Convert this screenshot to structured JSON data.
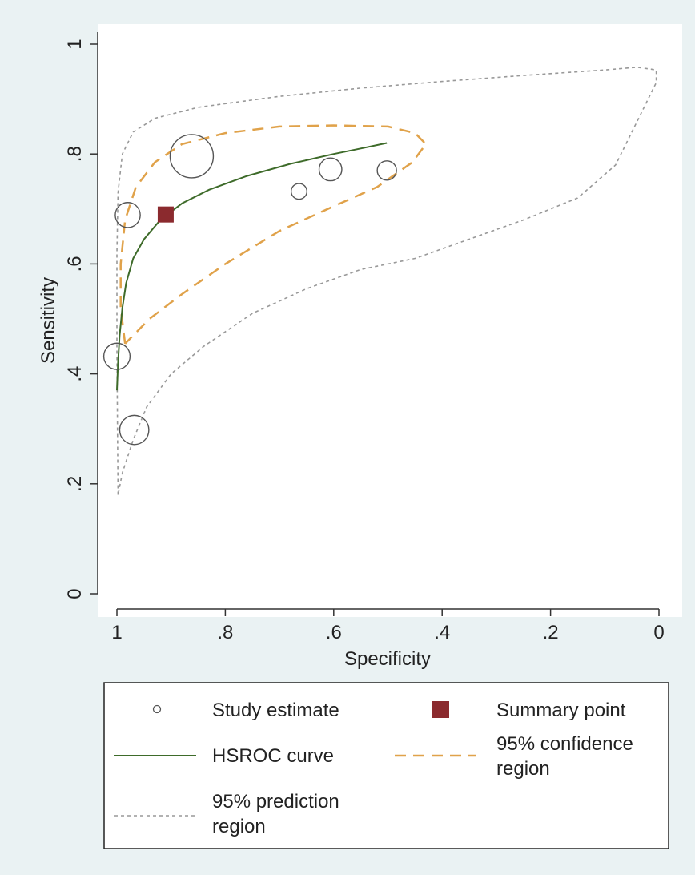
{
  "chart_data": {
    "type": "scatter",
    "xlabel": "Specificity",
    "ylabel": "Sensitivity",
    "x_reversed": true,
    "xlim": [
      1,
      0
    ],
    "ylim": [
      0,
      1
    ],
    "x_ticks": [
      {
        "value": 1,
        "label": "1"
      },
      {
        "value": 0.8,
        "label": ".8"
      },
      {
        "value": 0.6,
        "label": ".6"
      },
      {
        "value": 0.4,
        "label": ".4"
      },
      {
        "value": 0.2,
        "label": ".2"
      },
      {
        "value": 0,
        "label": "0"
      }
    ],
    "y_ticks": [
      {
        "value": 0,
        "label": "0"
      },
      {
        "value": 0.2,
        "label": ".2"
      },
      {
        "value": 0.4,
        "label": ".4"
      },
      {
        "value": 0.6,
        "label": ".6"
      },
      {
        "value": 0.8,
        "label": ".8"
      },
      {
        "value": 1,
        "label": "1"
      }
    ],
    "grid": false,
    "legend_position": "bottom",
    "colors": {
      "study": "#555555",
      "summary": "#8b2a2e",
      "hsroc": "#3e6b2a",
      "confidence": "#e0a24a",
      "prediction": "#999999",
      "plot_bg": "#ffffff",
      "outer_bg": "#eaf2f3"
    },
    "study_estimates": [
      {
        "specificity": 0.862,
        "sensitivity": 0.796,
        "weight": 1.0
      },
      {
        "specificity": 0.98,
        "sensitivity": 0.689,
        "weight": 0.48
      },
      {
        "specificity": 0.606,
        "sensitivity": 0.772,
        "weight": 0.42
      },
      {
        "specificity": 0.664,
        "sensitivity": 0.732,
        "weight": 0.22
      },
      {
        "specificity": 0.502,
        "sensitivity": 0.77,
        "weight": 0.32
      },
      {
        "specificity": 1.0,
        "sensitivity": 0.432,
        "weight": 0.52
      },
      {
        "specificity": 0.968,
        "sensitivity": 0.298,
        "weight": 0.6
      }
    ],
    "summary_point": {
      "specificity": 0.91,
      "sensitivity": 0.69
    },
    "hsroc_curve": [
      [
        1.0,
        0.37
      ],
      [
        0.998,
        0.42
      ],
      [
        0.995,
        0.47
      ],
      [
        0.99,
        0.52
      ],
      [
        0.983,
        0.565
      ],
      [
        0.97,
        0.61
      ],
      [
        0.95,
        0.645
      ],
      [
        0.92,
        0.68
      ],
      [
        0.88,
        0.71
      ],
      [
        0.83,
        0.735
      ],
      [
        0.76,
        0.76
      ],
      [
        0.68,
        0.782
      ],
      [
        0.6,
        0.8
      ],
      [
        0.55,
        0.81
      ],
      [
        0.502,
        0.82
      ]
    ],
    "confidence_region": [
      [
        0.985,
        0.455
      ],
      [
        0.993,
        0.52
      ],
      [
        0.993,
        0.6
      ],
      [
        0.985,
        0.68
      ],
      [
        0.965,
        0.74
      ],
      [
        0.93,
        0.785
      ],
      [
        0.88,
        0.818
      ],
      [
        0.8,
        0.838
      ],
      [
        0.7,
        0.85
      ],
      [
        0.6,
        0.852
      ],
      [
        0.5,
        0.85
      ],
      [
        0.45,
        0.838
      ],
      [
        0.43,
        0.818
      ],
      [
        0.455,
        0.785
      ],
      [
        0.52,
        0.74
      ],
      [
        0.6,
        0.705
      ],
      [
        0.7,
        0.66
      ],
      [
        0.8,
        0.6
      ],
      [
        0.88,
        0.545
      ],
      [
        0.94,
        0.5
      ],
      [
        0.985,
        0.455
      ]
    ],
    "prediction_region": [
      [
        0.998,
        0.18
      ],
      [
        0.999,
        0.3
      ],
      [
        1.0,
        0.45
      ],
      [
        1.0,
        0.62
      ],
      [
        0.998,
        0.73
      ],
      [
        0.99,
        0.8
      ],
      [
        0.97,
        0.84
      ],
      [
        0.93,
        0.865
      ],
      [
        0.85,
        0.885
      ],
      [
        0.7,
        0.905
      ],
      [
        0.55,
        0.92
      ],
      [
        0.4,
        0.932
      ],
      [
        0.25,
        0.943
      ],
      [
        0.1,
        0.953
      ],
      [
        0.04,
        0.958
      ],
      [
        0.005,
        0.953
      ],
      [
        0.005,
        0.93
      ],
      [
        0.03,
        0.88
      ],
      [
        0.08,
        0.78
      ],
      [
        0.15,
        0.72
      ],
      [
        0.25,
        0.68
      ],
      [
        0.35,
        0.645
      ],
      [
        0.45,
        0.61
      ],
      [
        0.55,
        0.59
      ],
      [
        0.65,
        0.555
      ],
      [
        0.75,
        0.51
      ],
      [
        0.84,
        0.45
      ],
      [
        0.9,
        0.4
      ],
      [
        0.945,
        0.34
      ],
      [
        0.97,
        0.28
      ],
      [
        0.99,
        0.22
      ],
      [
        0.998,
        0.18
      ]
    ],
    "legend": {
      "study_estimate": "Study estimate",
      "summary_point": "Summary point",
      "hsroc_curve": "HSROC curve",
      "confidence_line1": "95% confidence",
      "confidence_line2": "region",
      "prediction_line1": "95% prediction",
      "prediction_line2": "region"
    }
  }
}
